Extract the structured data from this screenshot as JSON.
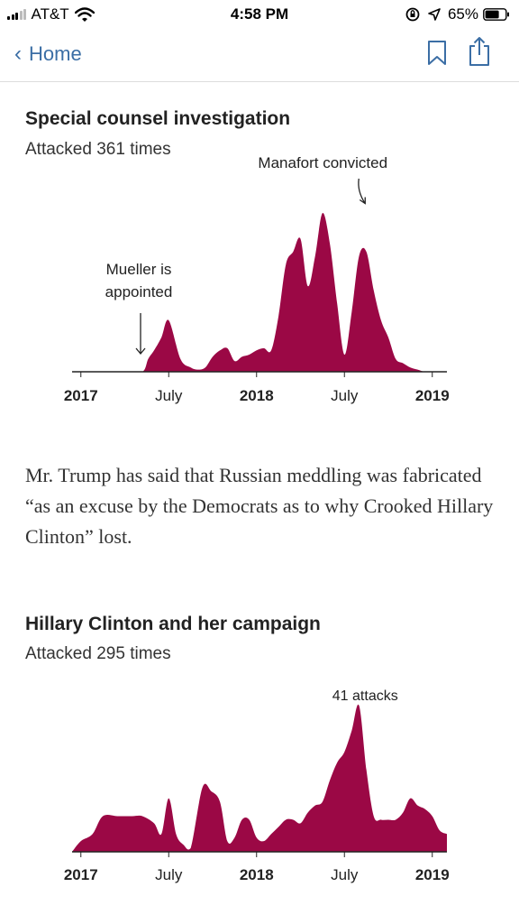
{
  "status_bar": {
    "carrier": "AT&T",
    "time": "4:58 PM",
    "battery": "65%"
  },
  "nav": {
    "back_label": "Home"
  },
  "article": {
    "paragraph": "Mr. Trump has said that Russian meddling was fabricated “as an excuse by the Democrats as to why Crooked Hillary Clinton” lost."
  },
  "charts": [
    {
      "title": "Special counsel investigation",
      "subtitle": "Attacked 361 times"
    },
    {
      "title": "Hillary Clinton and her campaign",
      "subtitle": "Attacked 295 times"
    }
  ],
  "chart_data": [
    {
      "type": "area",
      "title": "Special counsel investigation",
      "subtitle": "Attacked 361 times",
      "color": "#9b0845",
      "x_ticks": [
        {
          "label": "2017",
          "bold": true,
          "x": 0
        },
        {
          "label": "July",
          "bold": false,
          "x": 6
        },
        {
          "label": "2018",
          "bold": true,
          "x": 12
        },
        {
          "label": "July",
          "bold": false,
          "x": 18
        },
        {
          "label": "2019",
          "bold": true,
          "x": 24
        }
      ],
      "xlim": [
        -0.6,
        25
      ],
      "ylim": [
        0,
        40
      ],
      "annotations": [
        {
          "lines": [
            "Mueller is",
            "appointed"
          ],
          "x": 4.2,
          "arrow": "down",
          "value": 0
        },
        {
          "lines": [
            "Manafort convicted"
          ],
          "x": 19.6,
          "arrow": "curve",
          "value": 38
        }
      ],
      "x": [
        -0.6,
        3,
        4.2,
        4.6,
        5,
        5.5,
        6,
        6.8,
        7.5,
        8,
        8.5,
        9,
        9.5,
        10,
        10.5,
        11,
        11.5,
        12,
        12.5,
        13,
        13.5,
        14,
        14.5,
        15,
        15.5,
        16,
        16.5,
        17,
        17.5,
        18,
        18.5,
        19,
        19.5,
        20,
        20.5,
        21,
        21.5,
        22,
        22.5,
        23,
        23.5,
        24,
        24.5,
        25
      ],
      "y": [
        0,
        0,
        0,
        3,
        5,
        8,
        12,
        3,
        1,
        0.5,
        1,
        3.5,
        5,
        5.5,
        2.5,
        3.5,
        4,
        5,
        5.5,
        5,
        13,
        25,
        28,
        31,
        20,
        27,
        37,
        30,
        16,
        4,
        14,
        27,
        28,
        19,
        12,
        8,
        3,
        2,
        1,
        0.5,
        0,
        0,
        0,
        0
      ]
    },
    {
      "type": "area",
      "title": "Hillary Clinton and her campaign",
      "subtitle": "Attacked 295 times",
      "color": "#9b0845",
      "x_ticks": [
        {
          "label": "2017",
          "bold": true,
          "x": 0
        },
        {
          "label": "July",
          "bold": false,
          "x": 6
        },
        {
          "label": "2018",
          "bold": true,
          "x": 12
        },
        {
          "label": "July",
          "bold": false,
          "x": 18
        },
        {
          "label": "2019",
          "bold": true,
          "x": 24
        }
      ],
      "xlim": [
        -0.6,
        25
      ],
      "ylim": [
        0,
        41
      ],
      "annotations": [
        {
          "lines": [
            "41 attacks"
          ],
          "x": 19.6,
          "arrow": "none",
          "value": 41
        }
      ],
      "x": [
        -0.6,
        0,
        0.8,
        1.5,
        2.5,
        3.5,
        4.2,
        5,
        5.5,
        6,
        6.5,
        7,
        7.5,
        8.3,
        8.9,
        9.5,
        10,
        10.5,
        11,
        11.5,
        12,
        12.5,
        13,
        13.5,
        14,
        14.5,
        15,
        15.5,
        16,
        16.5,
        17,
        17.5,
        18,
        18.5,
        19,
        19.5,
        20,
        20.5,
        21,
        21.5,
        22,
        22.5,
        23,
        23.5,
        24,
        24.5,
        25
      ],
      "y": [
        0,
        3,
        5,
        10,
        10,
        10,
        10,
        8,
        5,
        15,
        5,
        2,
        1,
        18,
        17,
        14,
        3,
        4,
        9,
        9,
        4,
        3,
        5,
        7,
        9,
        9,
        8,
        11,
        13,
        14,
        20,
        25,
        28,
        34,
        41,
        23,
        10,
        9,
        9,
        9,
        11,
        15,
        13,
        12,
        10,
        6,
        5
      ]
    }
  ]
}
